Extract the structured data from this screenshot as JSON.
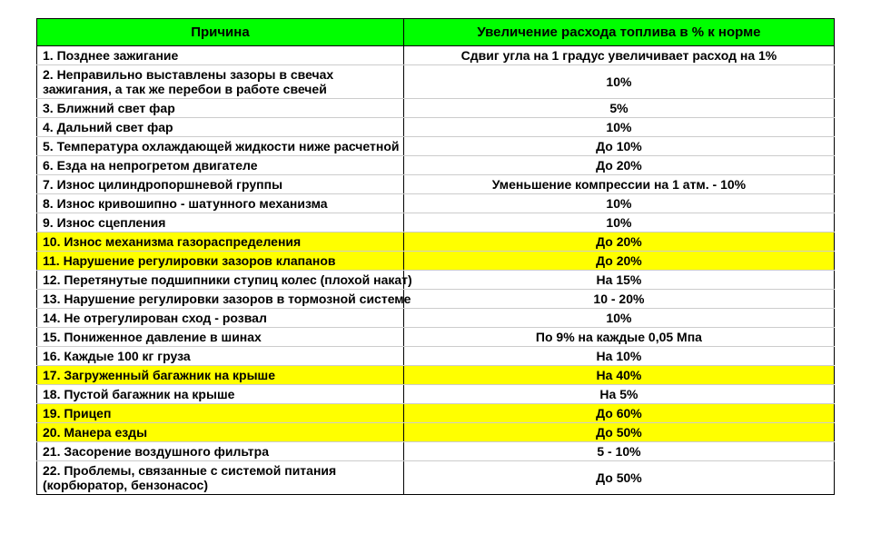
{
  "table": {
    "header_bg": "#00ff00",
    "highlight_bg": "#ffff00",
    "border_color": "#000000",
    "row_border_color": "#cccccc",
    "font_family": "Arial",
    "font_size_pt": 10,
    "header_font_size_pt": 11,
    "col_widths_pct": [
      46,
      54
    ],
    "columns": [
      "Причина",
      "Увеличение расхода топлива в % к норме"
    ],
    "rows": [
      {
        "cause": "1. Позднее зажигание",
        "value": "Сдвиг угла на 1 градус увеличивает расход на 1%",
        "highlight": false,
        "wrap": false
      },
      {
        "cause": "2. Неправильно выставлены зазоры в свечах зажигания, а так же перебои в работе свечей",
        "value": "10%",
        "highlight": false,
        "wrap": true
      },
      {
        "cause": "3. Ближний свет фар",
        "value": "5%",
        "highlight": false,
        "wrap": false
      },
      {
        "cause": "4. Дальний свет фар",
        "value": "10%",
        "highlight": false,
        "wrap": false
      },
      {
        "cause": "5. Температура охлаждающей жидкости ниже расчетной",
        "value": "До 10%",
        "highlight": false,
        "wrap": false
      },
      {
        "cause": "6. Езда на непрогретом двигателе",
        "value": "До 20%",
        "highlight": false,
        "wrap": false
      },
      {
        "cause": "7. Износ цилиндропоршневой группы",
        "value": "Уменьшение компрессии на 1 атм. - 10%",
        "highlight": false,
        "wrap": false
      },
      {
        "cause": "8. Износ кривошипно - шатунного механизма",
        "value": "10%",
        "highlight": false,
        "wrap": false
      },
      {
        "cause": "9. Износ сцепления",
        "value": "10%",
        "highlight": false,
        "wrap": false
      },
      {
        "cause": "10. Износ механизма газораспределения",
        "value": "До 20%",
        "highlight": true,
        "wrap": false
      },
      {
        "cause": "11. Нарушение регулировки зазоров клапанов",
        "value": "До 20%",
        "highlight": true,
        "wrap": false
      },
      {
        "cause": "12. Перетянутые подшипники ступиц колес (плохой накат)",
        "value": "На 15%",
        "highlight": false,
        "wrap": false
      },
      {
        "cause": "13. Нарушение регулировки зазоров в тормозной системе",
        "value": "10 - 20%",
        "highlight": false,
        "wrap": false
      },
      {
        "cause": "14. Не отрегулирован сход - розвал",
        "value": "10%",
        "highlight": false,
        "wrap": false
      },
      {
        "cause": "15. Пониженное давление в шинах",
        "value": "По 9% на каждые 0,05 Мпа",
        "highlight": false,
        "wrap": false
      },
      {
        "cause": "16. Каждые 100 кг груза",
        "value": "На 10%",
        "highlight": false,
        "wrap": false
      },
      {
        "cause": "17. Загруженный багажник на крыше",
        "value": "На 40%",
        "highlight": true,
        "wrap": false
      },
      {
        "cause": "18. Пустой багажник на крыше",
        "value": "На 5%",
        "highlight": false,
        "wrap": false
      },
      {
        "cause": "19. Прицеп",
        "value": "До 60%",
        "highlight": true,
        "wrap": false
      },
      {
        "cause": "20. Манера езды",
        "value": "До 50%",
        "highlight": true,
        "wrap": false
      },
      {
        "cause": "21. Засорение воздушного фильтра",
        "value": "5 - 10%",
        "highlight": false,
        "wrap": false
      },
      {
        "cause": "22. Проблемы, связанные с системой питания (корбюратор, бензонасос)",
        "value": "До 50%",
        "highlight": false,
        "wrap": true
      }
    ]
  }
}
